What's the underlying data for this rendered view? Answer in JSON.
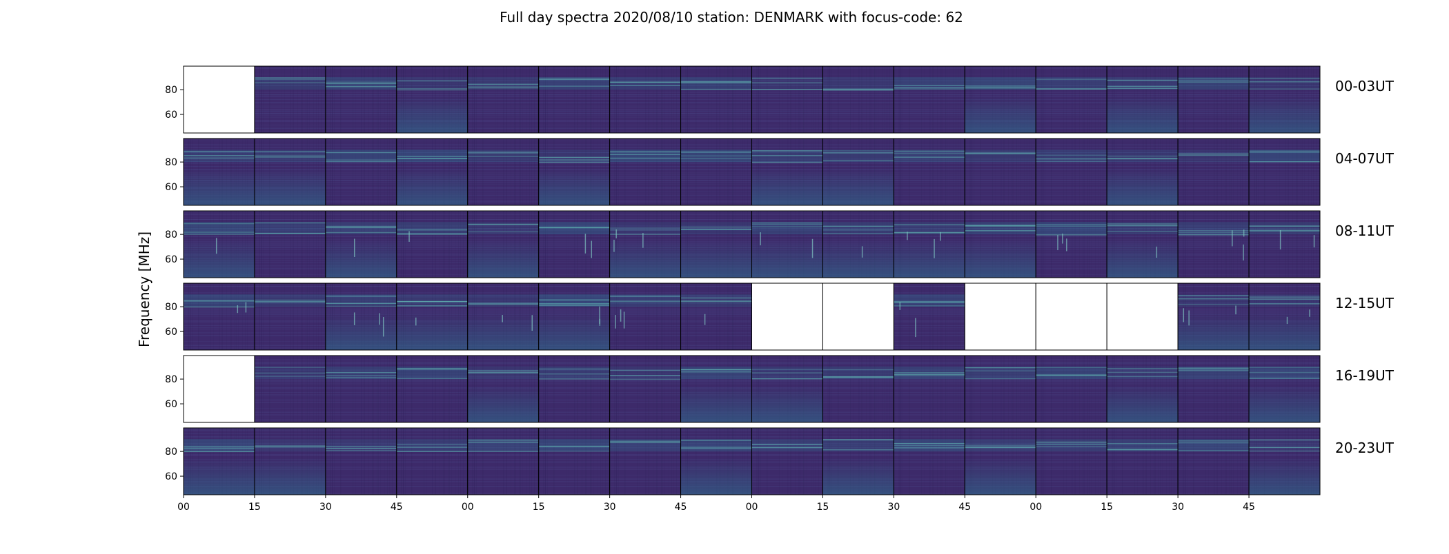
{
  "chart_data": {
    "type": "heatmap",
    "title": "Full day spectra 2020/08/10 station: DENMARK with focus-code: 62",
    "ylabel": "Frequency [MHz]",
    "xlabel": "",
    "ylim": [
      45,
      99
    ],
    "y_ticks": [
      60,
      80
    ],
    "x_ticks": [
      "00",
      "15",
      "30",
      "45",
      "00",
      "15",
      "30",
      "45",
      "00",
      "15",
      "30",
      "45",
      "00",
      "15",
      "30",
      "45"
    ],
    "rows": [
      {
        "label": "00-03UT",
        "panels": [
          "empty",
          "noise",
          "noise",
          "noise",
          "noise",
          "noise",
          "noise",
          "noise",
          "noise",
          "noise",
          "noise",
          "noise",
          "noise",
          "noise",
          "noise",
          "noise"
        ]
      },
      {
        "label": "04-07UT",
        "panels": [
          "noise",
          "noise",
          "noise",
          "noise",
          "noise",
          "noise",
          "noise",
          "noise",
          "noise",
          "noise",
          "noise",
          "noise",
          "noise",
          "noise",
          "noise",
          "noise"
        ]
      },
      {
        "label": "08-11UT",
        "panels": [
          "noise",
          "noise",
          "noise",
          "noise",
          "noise",
          "noise",
          "noise",
          "noise",
          "noise",
          "noise",
          "noise",
          "noise",
          "noise",
          "noise",
          "noise",
          "noise"
        ]
      },
      {
        "label": "12-15UT",
        "panels": [
          "noise",
          "noise",
          "noise",
          "noise",
          "noise",
          "noise",
          "noise",
          "noise",
          "empty",
          "empty",
          "noise",
          "empty",
          "empty",
          "empty",
          "noise",
          "noise"
        ]
      },
      {
        "label": "16-19UT",
        "panels": [
          "empty",
          "noise",
          "noise",
          "noise",
          "noise",
          "noise",
          "noise",
          "noise",
          "noise",
          "noise",
          "noise",
          "noise",
          "noise",
          "noise",
          "noise",
          "noise"
        ]
      },
      {
        "label": "20-23UT",
        "panels": [
          "noise",
          "noise",
          "noise",
          "noise",
          "noise",
          "noise",
          "noise",
          "noise",
          "noise",
          "noise",
          "noise",
          "noise",
          "noise",
          "noise",
          "noise",
          "noise"
        ]
      }
    ],
    "colors": {
      "background": "#3d2a6a",
      "band": "#2f6f8f",
      "burst": "#b8e02a",
      "empty": "#ffffff"
    }
  }
}
